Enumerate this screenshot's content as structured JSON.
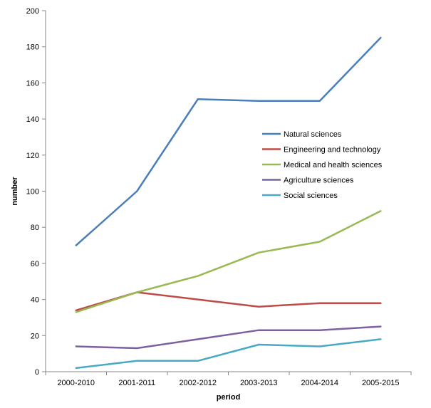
{
  "chart_data": {
    "type": "line",
    "categories": [
      "2000-2010",
      "2001-2011",
      "2002-2012",
      "2003-2013",
      "2004-2014",
      "2005-2015"
    ],
    "xlabel": "period",
    "ylabel": "number",
    "ylim": [
      0,
      200
    ],
    "yticks": [
      0,
      20,
      40,
      60,
      80,
      100,
      120,
      140,
      160,
      180,
      200
    ],
    "grid": false,
    "legend_position": "inside-right",
    "series": [
      {
        "name": "Natural sciences",
        "color": "#4a7ebb",
        "values": [
          70,
          100,
          151,
          150,
          150,
          185
        ]
      },
      {
        "name": "Engineering and technology",
        "color": "#be4b48",
        "values": [
          34,
          44,
          40,
          36,
          38,
          38
        ]
      },
      {
        "name": "Medical and health sciences",
        "color": "#98b954",
        "values": [
          33,
          44,
          53,
          66,
          72,
          89
        ]
      },
      {
        "name": "Agriculture sciences",
        "color": "#7d60a0",
        "values": [
          14,
          13,
          18,
          23,
          23,
          25
        ]
      },
      {
        "name": "Social sciences",
        "color": "#46aac5",
        "values": [
          2,
          6,
          6,
          15,
          14,
          18
        ]
      }
    ]
  }
}
